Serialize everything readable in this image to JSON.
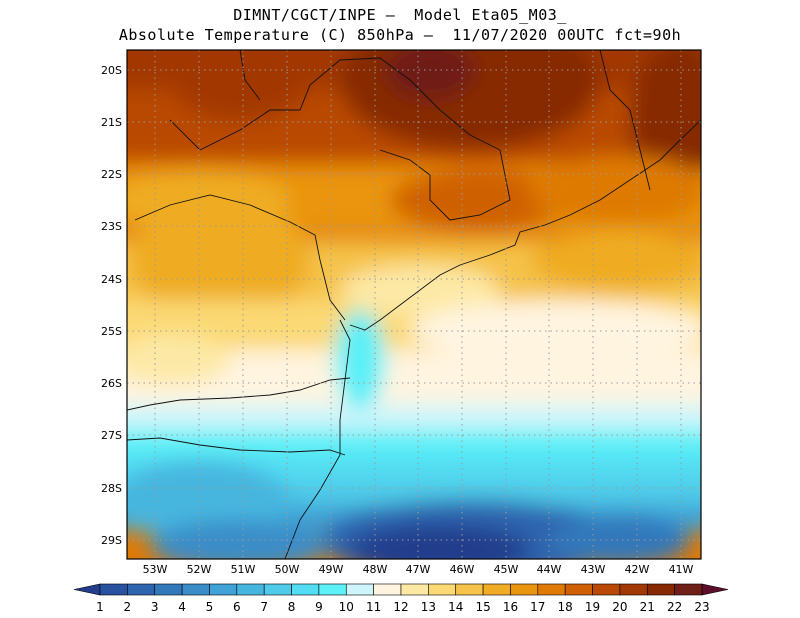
{
  "title_line1": "DIMNT/CGCT/INPE –  Model Eta05_M03_",
  "title_line2": "Absolute Temperature (C) 850hPa –  11/07/2020 00UTC fct=90h",
  "map": {
    "lat_labels": [
      "20S",
      "21S",
      "22S",
      "23S",
      "24S",
      "25S",
      "26S",
      "27S",
      "28S",
      "29S"
    ],
    "lon_labels": [
      "53W",
      "52W",
      "51W",
      "50W",
      "49W",
      "48W",
      "47W",
      "46W",
      "45W",
      "44W",
      "43W",
      "42W",
      "41W"
    ],
    "grid": "dotted"
  },
  "colorbar": {
    "labels": [
      "1",
      "2",
      "3",
      "4",
      "5",
      "6",
      "7",
      "8",
      "9",
      "10",
      "11",
      "12",
      "13",
      "14",
      "15",
      "16",
      "17",
      "18",
      "19",
      "20",
      "21",
      "22",
      "23"
    ],
    "colors": [
      "#233d8c",
      "#2851a0",
      "#2e64ae",
      "#3378bb",
      "#3a8dc8",
      "#40a2d6",
      "#47b6df",
      "#4fcae8",
      "#52ddf2",
      "#5cf0f7",
      "#cdf5fb",
      "#fff4e0",
      "#fde9a6",
      "#fbd974",
      "#f5c24a",
      "#efac24",
      "#ea9510",
      "#df7a06",
      "#cf6004",
      "#b94904",
      "#a23803",
      "#872a02",
      "#6f1f18",
      "#5b0f2a"
    ]
  }
}
